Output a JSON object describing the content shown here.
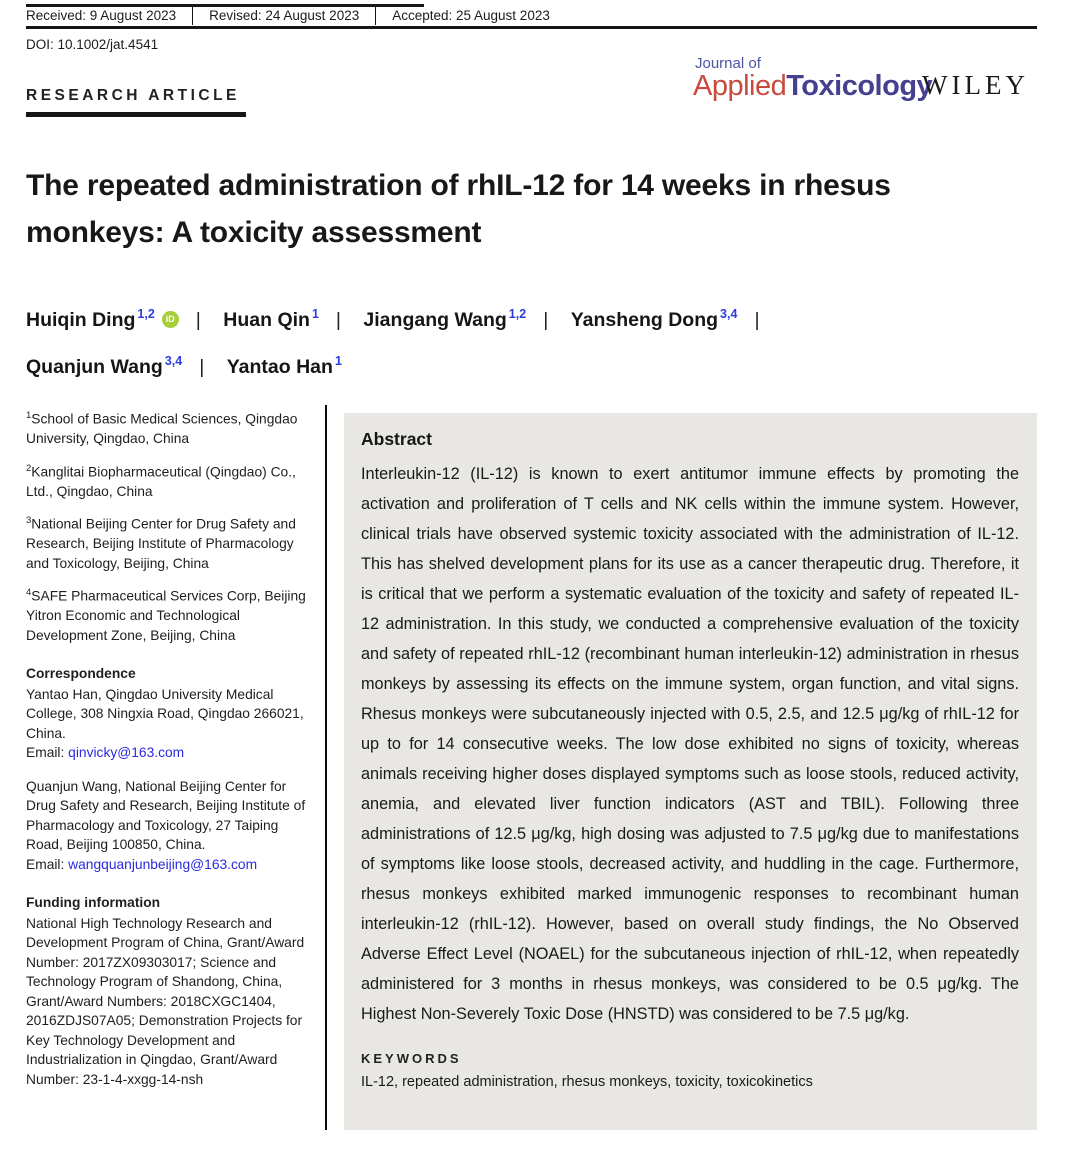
{
  "meta_bar": {
    "received": "Received: 9 August 2023",
    "revised": "Revised: 24 August 2023",
    "accepted": "Accepted: 25 August 2023",
    "doi": "DOI: 10.1002/jat.4541"
  },
  "journal": {
    "line1": "Journal of",
    "name_light": "Applied",
    "name_bold": "Toxicology",
    "publisher": "WILEY"
  },
  "article": {
    "type": "RESEARCH ARTICLE",
    "title": "The repeated administration of rhIL-12 for 14 weeks in rhesus monkeys: A toxicity assessment"
  },
  "authors": {
    "separator": "|",
    "orcid_label": "iD",
    "list": [
      {
        "name": "Huiqin Ding",
        "sup": "1,2"
      },
      {
        "name": "Huan Qin",
        "sup": "1"
      },
      {
        "name": "Jiangang Wang",
        "sup": "1,2"
      },
      {
        "name": "Yansheng Dong",
        "sup": "3,4"
      },
      {
        "name": "Quanjun Wang",
        "sup": "3,4"
      },
      {
        "name": "Yantao Han",
        "sup": "1"
      }
    ]
  },
  "affiliations": [
    {
      "sup": "1",
      "text": "School of Basic Medical Sciences, Qingdao University, Qingdao, China"
    },
    {
      "sup": "2",
      "text": "Kanglitai Biopharmaceutical (Qingdao) Co., Ltd., Qingdao, China"
    },
    {
      "sup": "3",
      "text": "National Beijing Center for Drug Safety and Research, Beijing Institute of Pharmacology and Toxicology, Beijing, China"
    },
    {
      "sup": "4",
      "text": "SAFE Pharmaceutical Services Corp, Beijing Yitron Economic and Technological Development Zone, Beijing, China"
    }
  ],
  "correspondence": {
    "heading": "Correspondence",
    "entries": [
      {
        "text": "Yantao Han, Qingdao University Medical College, 308 Ningxia Road, Qingdao 266021, China.",
        "email_label": "Email: ",
        "email": "qinvicky@163.com"
      },
      {
        "text": "Quanjun Wang, National Beijing Center for Drug Safety and Research, Beijing Institute of Pharmacology and Toxicology, 27 Taiping Road, Beijing 100850, China.",
        "email_label": "Email: ",
        "email": "wangquanjunbeijing@163.com"
      }
    ]
  },
  "funding": {
    "heading": "Funding information",
    "text": "National High Technology Research and Development Program of China, Grant/Award Number: 2017ZX09303017; Science and Technology Program of Shandong, China, Grant/Award Numbers: 2018CXGC1404, 2016ZDJS07A05; Demonstration Projects for Key Technology Development and Industrialization in Qingdao, Grant/Award Number: 23-1-4-xxgg-14-nsh"
  },
  "abstract": {
    "heading": "Abstract",
    "body": "Interleukin-12 (IL-12) is known to exert antitumor immune effects by promoting the activation and proliferation of T cells and NK cells within the immune system. However, clinical trials have observed systemic toxicity associated with the administration of IL-12. This has shelved development plans for its use as a cancer therapeutic drug. Therefore, it is critical that we perform a systematic evaluation of the toxicity and safety of repeated IL-12 administration. In this study, we conducted a comprehensive evaluation of the toxicity and safety of repeated rhIL-12 (recombinant human interleukin-12) administration in rhesus monkeys by assessing its effects on the immune system, organ function, and vital signs. Rhesus monkeys were subcutaneously injected with 0.5, 2.5, and 12.5 μg/kg of rhIL-12 for up to for 14 consecutive weeks. The low dose exhibited no signs of toxicity, whereas animals receiving higher doses displayed symptoms such as loose stools, reduced activity, anemia, and elevated liver function indicators (AST and TBIL). Following three administrations of 12.5 μg/kg, high dosing was adjusted to 7.5 μg/kg due to manifestations of symptoms like loose stools, decreased activity, and huddling in the cage. Furthermore, rhesus monkeys exhibited marked immunogenic responses to recombinant human interleukin-12 (rhIL-12). However, based on overall study findings, the No Observed Adverse Effect Level (NOAEL) for the subcutaneous injection of rhIL-12, when repeatedly administered for 3 months in rhesus monkeys, was considered to be 0.5 μg/kg. The Highest Non-Severely Toxic Dose (HNSTD) was considered to be 7.5 μg/kg.",
    "keywords_heading": "KEYWORDS",
    "keywords": "IL-12, repeated administration, rhesus monkeys, toxicity, toxicokinetics"
  },
  "colors": {
    "logo_blue": "#4a55a5",
    "logo_red": "#c94a3e",
    "logo_dark_blue": "#46418f",
    "superscript_blue": "#2b3ce0",
    "email_link_blue": "#2a2ae0",
    "orcid_green": "#a6ce39",
    "abstract_background": "#e8e7e4"
  }
}
